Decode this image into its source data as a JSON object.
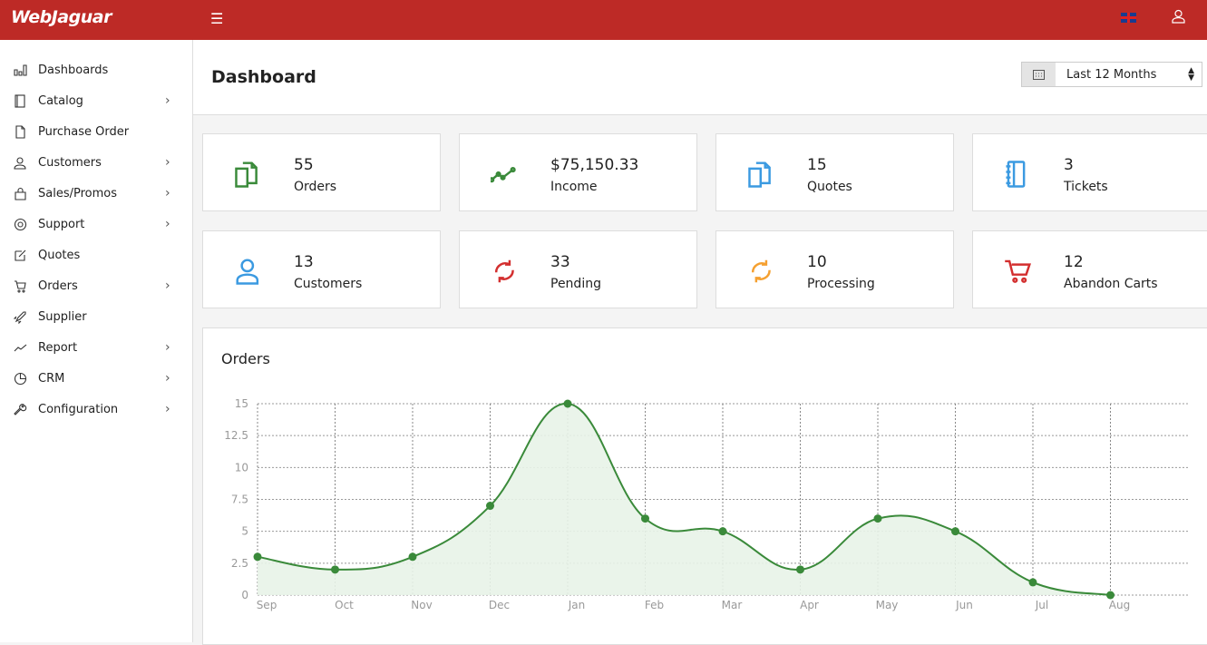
{
  "header": {
    "logo": "WebJaguar",
    "menu_icon": "hamburger-icon",
    "flag": "uk-flag-icon",
    "user_icon": "user-icon"
  },
  "sidebar": {
    "items": [
      {
        "label": "Dashboards",
        "icon": "bar-chart-icon",
        "chevron": false
      },
      {
        "label": "Catalog",
        "icon": "book-icon",
        "chevron": true
      },
      {
        "label": "Purchase Order",
        "icon": "file-icon",
        "chevron": false
      },
      {
        "label": "Customers",
        "icon": "users-icon",
        "chevron": true
      },
      {
        "label": "Sales/Promos",
        "icon": "bag-icon",
        "chevron": true
      },
      {
        "label": "Support",
        "icon": "lifebuoy-icon",
        "chevron": true
      },
      {
        "label": "Quotes",
        "icon": "edit-icon",
        "chevron": false
      },
      {
        "label": "Orders",
        "icon": "cart-icon",
        "chevron": true
      },
      {
        "label": "Supplier",
        "icon": "rocket-icon",
        "chevron": false
      },
      {
        "label": "Report",
        "icon": "line-chart-icon",
        "chevron": true
      },
      {
        "label": "CRM",
        "icon": "pie-icon",
        "chevron": true
      },
      {
        "label": "Configuration",
        "icon": "wrench-icon",
        "chevron": true
      }
    ]
  },
  "page": {
    "title": "Dashboard",
    "date_range": "Last 12 Months"
  },
  "stats": [
    {
      "value": "55",
      "label": "Orders",
      "color": "#3a8a3a"
    },
    {
      "value": "$75,150.33",
      "label": "Income",
      "color": "#3a8a3a"
    },
    {
      "value": "15",
      "label": "Quotes",
      "color": "#3b9ae1"
    },
    {
      "value": "3",
      "label": "Tickets",
      "color": "#3b9ae1"
    },
    {
      "value": "13",
      "label": "Customers",
      "color": "#3b9ae1"
    },
    {
      "value": "33",
      "label": "Pending",
      "color": "#d32f2f"
    },
    {
      "value": "10",
      "label": "Processing",
      "color": "#f5a030"
    },
    {
      "value": "12",
      "label": "Abandon Carts",
      "color": "#d32f2f"
    }
  ],
  "chart_data": {
    "type": "area",
    "title": "Orders",
    "categories": [
      "Sep",
      "Oct",
      "Nov",
      "Dec",
      "Jan",
      "Feb",
      "Mar",
      "Apr",
      "May",
      "Jun",
      "Jul",
      "Aug"
    ],
    "values": [
      3,
      2,
      3,
      7,
      15,
      6,
      5,
      2,
      6,
      5,
      1,
      0
    ],
    "yticks": [
      "0",
      "2.5",
      "5",
      "7.5",
      "10",
      "12.5",
      "15"
    ],
    "ylim": [
      0,
      15
    ],
    "grid": true,
    "color": "#3a8a3a",
    "fill": "#e8f3e8"
  }
}
